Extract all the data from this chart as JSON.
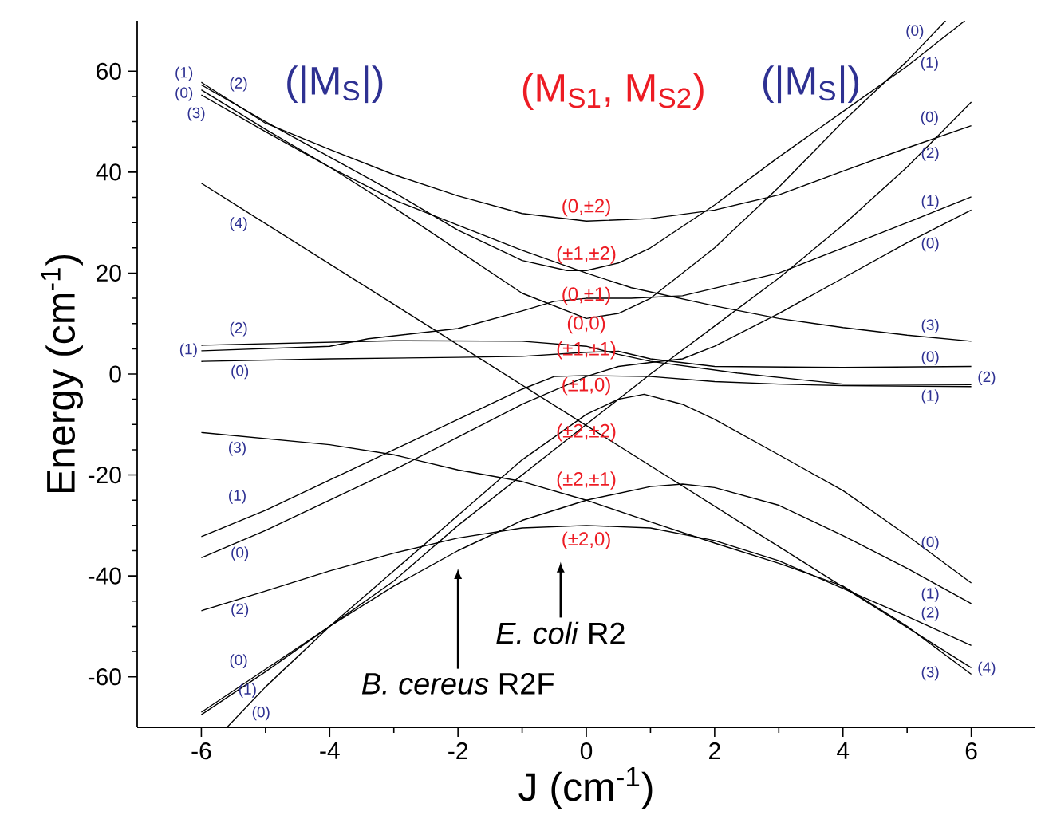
{
  "chart_data": {
    "type": "line",
    "title": "(M$_{S1}$, M$_{S2}$)",
    "xlabel": "J (cm$^{-1}$)",
    "ylabel": "Energy (cm$^{-1}$)",
    "xlim": [
      -7,
      7
    ],
    "ylim": [
      -70,
      70
    ],
    "xticks": [
      -6,
      -4,
      -2,
      0,
      2,
      4,
      6
    ],
    "yticks": [
      -60,
      -40,
      -20,
      0,
      20,
      40,
      60
    ],
    "marker": "none",
    "line_style": "solid",
    "series": [
      {
        "color": "#000000",
        "x": [
          -6,
          -5,
          -4,
          -3,
          -2,
          -1,
          0,
          1,
          2,
          3,
          4,
          5,
          6
        ],
        "values": [
          57.8,
          49.7,
          44.5,
          39.5,
          35.3,
          31.8,
          30.3,
          30.8,
          32.5,
          35.5,
          40.2,
          44.8,
          49.2
        ]
      },
      {
        "color": "#000000",
        "x": [
          -6,
          -5,
          -4,
          -3,
          -2,
          -1,
          -0.3,
          0,
          0.5,
          1,
          2,
          3,
          4,
          5,
          5.9
        ],
        "values": [
          57.3,
          50,
          43,
          36,
          28.5,
          22.5,
          20.5,
          20.5,
          22,
          25,
          33.5,
          43,
          52,
          61,
          70
        ]
      },
      {
        "color": "#000000",
        "x": [
          -6,
          -5,
          -4,
          -3,
          -2,
          -1,
          0,
          0.5,
          1,
          2,
          3,
          4,
          4.5,
          5,
          5.6
        ],
        "values": [
          56.3,
          48.5,
          41,
          33,
          24.5,
          16,
          11,
          12,
          15,
          25,
          37,
          50,
          56,
          62,
          70
        ]
      },
      {
        "color": "#000000",
        "x": [
          -6,
          -5,
          -4,
          -3,
          -2,
          -1,
          0,
          0.7,
          2,
          3,
          4,
          5,
          6
        ],
        "values": [
          55.3,
          48,
          41,
          34.5,
          29.5,
          24.5,
          20,
          17.1,
          13.5,
          11,
          9.2,
          7.7,
          6.5
        ]
      },
      {
        "color": "#000000",
        "x": [
          -6,
          0,
          6
        ],
        "values": [
          37.8,
          -10.2,
          -58.2
        ]
      },
      {
        "color": "#000000",
        "x": [
          -6,
          -4,
          -3,
          -1,
          0,
          0.5,
          1,
          2.35,
          4,
          6
        ],
        "values": [
          5.7,
          6.3,
          6.6,
          6.5,
          5.5,
          3.9,
          2.5,
          0.2,
          -2,
          -2.1
        ]
      },
      {
        "color": "#000000",
        "x": [
          -6,
          -4,
          -3.4,
          -2,
          -1,
          -0.5,
          0,
          0.7,
          1.5,
          2,
          3,
          4,
          5,
          6
        ],
        "values": [
          4.6,
          5.5,
          7,
          9,
          12.5,
          14.4,
          15,
          15,
          15.5,
          17,
          20,
          25,
          30,
          35.1
        ]
      },
      {
        "color": "#000000",
        "x": [
          -6,
          -4,
          -2,
          -1,
          0,
          0.5,
          1,
          2,
          4,
          6
        ],
        "values": [
          2.5,
          3,
          3.3,
          3.5,
          4.3,
          4.5,
          3,
          1.5,
          1.3,
          1.5
        ]
      },
      {
        "color": "#000000",
        "x": [
          -6,
          -4,
          -3,
          -2,
          -1,
          0,
          1,
          2,
          3,
          4,
          5,
          6
        ],
        "values": [
          -11.6,
          -14,
          -16,
          -19,
          -21.3,
          -25,
          -29.3,
          -33.5,
          -37.5,
          -42,
          -50,
          -59.5
        ]
      },
      {
        "color": "#000000",
        "x": [
          -6,
          -5,
          -4,
          -3,
          -2,
          -1,
          -0.5,
          0,
          1,
          2,
          3,
          4,
          6
        ],
        "values": [
          -32.2,
          -27,
          -21,
          -15,
          -9,
          -3,
          -0.5,
          -0.3,
          -0.5,
          -1.5,
          -2,
          -2.3,
          -2.5
        ]
      },
      {
        "color": "#000000",
        "x": [
          -6,
          -5,
          -4,
          -3,
          -2,
          -1,
          0,
          0.5,
          1,
          1.5,
          2,
          3,
          4,
          5,
          6
        ],
        "values": [
          -36.4,
          -31,
          -25,
          -19,
          -12.5,
          -6,
          -0.5,
          1.5,
          2.3,
          3,
          5.5,
          12,
          19,
          26,
          32.5
        ]
      },
      {
        "color": "#000000",
        "x": [
          -6,
          -5,
          -4,
          -3,
          -2,
          -1,
          0,
          1,
          2,
          3,
          4,
          5,
          6
        ],
        "values": [
          -67.5,
          -59,
          -50,
          -41,
          -30,
          -20,
          -10,
          0,
          9.5,
          19,
          29.5,
          41,
          53.9
        ]
      },
      {
        "color": "#000000",
        "x": [
          -5.6,
          -5,
          -4,
          -3,
          -2,
          -1,
          0,
          0.5,
          0.9,
          1.5,
          2,
          3,
          4,
          5,
          6
        ],
        "values": [
          -70,
          -62,
          -50,
          -39,
          -28,
          -17,
          -8,
          -5,
          -4,
          -6,
          -9,
          -16,
          -23.1,
          -32,
          -41.4
        ]
      },
      {
        "color": "#000000",
        "x": [
          -6,
          -5,
          -4,
          -3,
          -2,
          -1,
          0,
          1,
          1.5,
          2,
          3,
          4,
          5,
          6
        ],
        "values": [
          -67,
          -58.5,
          -50,
          -42,
          -35,
          -29,
          -25,
          -22.3,
          -21.8,
          -22.5,
          -26,
          -32,
          -38.5,
          -45.5
        ]
      },
      {
        "color": "#000000",
        "x": [
          -6,
          -5,
          -4,
          -3,
          -2,
          -1,
          0,
          1,
          2,
          3,
          4,
          5,
          6
        ],
        "values": [
          -46.9,
          -43,
          -39,
          -35.5,
          -32.5,
          -30.5,
          -30,
          -30.5,
          -33,
          -37,
          -42.5,
          -48,
          -53.8
        ]
      }
    ],
    "annotations": [
      "(|M$_{S}$|)",
      "(|M$_{S}$|)",
      "(0,±2)",
      "(±1,±2)",
      "(0,±1)",
      "(0,0)",
      "(±1,±1)",
      "(±1,0)",
      "(±2,±2)",
      "(±2,±1)",
      "(±2,0)",
      "*E. coli* R2",
      "*B. cereus* R2F",
      "(1)",
      "(2)",
      "(0)",
      "(3)",
      "(4)",
      "(2)",
      "(1)",
      "(0)",
      "(3)",
      "(1)",
      "(0)",
      "(2)",
      "(0)",
      "(1)",
      "(0)",
      "(0)",
      "(1)",
      "(0)",
      "(2)",
      "(1)",
      "(0)",
      "(3)",
      "(0)",
      "(2)",
      "(1)",
      "(0)",
      "(1)",
      "(2)",
      "(4)",
      "(3)"
    ]
  }
}
